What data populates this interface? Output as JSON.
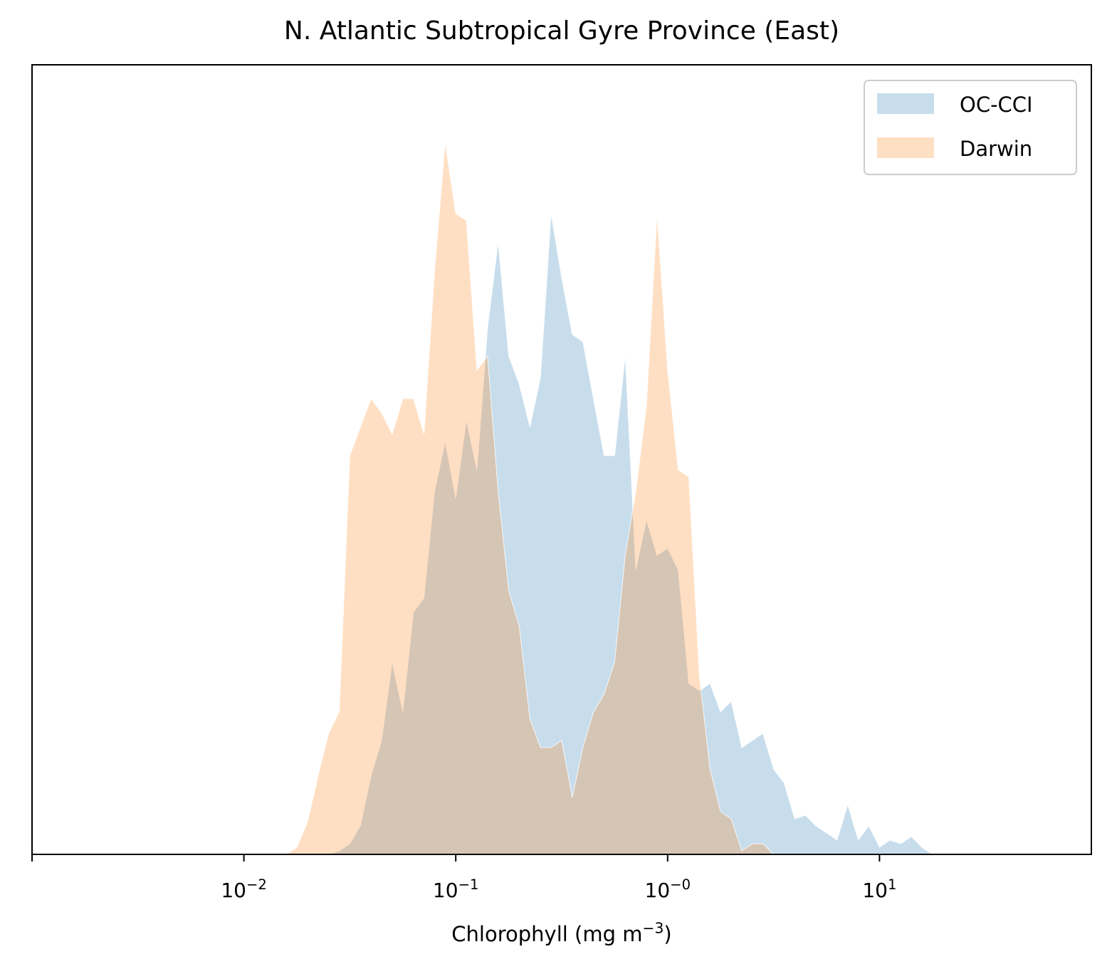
{
  "chart_data": {
    "type": "area",
    "title": "N. Atlantic Subtropical Gyre Province (East)",
    "x_label": "Chlorophyll  (mg m−3)",
    "log_x": true,
    "xlim": [
      0.001,
      100
    ],
    "xticks": [
      {
        "value": 0.001,
        "label": null
      },
      {
        "value": 0.01,
        "label": "10−2"
      },
      {
        "value": 0.1,
        "label": "10−1"
      },
      {
        "value": 1,
        "label": "10−0"
      },
      {
        "value": 10,
        "label": "101"
      }
    ],
    "ylim": [
      0,
      1109
    ],
    "legend": "upper right",
    "x": [
      0.01413,
      0.01585,
      0.01778,
      0.01995,
      0.02239,
      0.02512,
      0.02818,
      0.03162,
      0.03548,
      0.03981,
      0.04467,
      0.05012,
      0.05623,
      0.0631,
      0.07079,
      0.07943,
      0.08913,
      0.1,
      0.1122,
      0.1259,
      0.1413,
      0.1585,
      0.1778,
      0.1995,
      0.2239,
      0.2512,
      0.2818,
      0.3162,
      0.3548,
      0.3981,
      0.4467,
      0.5012,
      0.5623,
      0.631,
      0.7079,
      0.7943,
      0.8913,
      1,
      1.122,
      1.259,
      1.413,
      1.585,
      1.778,
      1.995,
      2.239,
      2.512,
      2.818,
      3.162,
      3.548,
      3.981,
      4.467,
      5.012,
      5.623,
      6.31,
      7.079,
      7.943,
      8.913,
      10,
      11.22,
      12.59,
      14.13,
      15.85,
      17.78
    ],
    "series": [
      {
        "name": "OC-CCI",
        "color": "#1f77b4",
        "values": [
          0,
          0,
          0,
          0,
          0,
          0,
          5,
          15,
          40,
          110,
          160,
          270,
          200,
          340,
          360,
          510,
          580,
          500,
          610,
          540,
          740,
          860,
          700,
          660,
          600,
          670,
          900,
          810,
          730,
          720,
          640,
          560,
          560,
          700,
          400,
          470,
          420,
          430,
          400,
          240,
          230,
          240,
          200,
          215,
          150,
          160,
          170,
          120,
          100,
          50,
          55,
          40,
          30,
          20,
          70,
          20,
          40,
          10,
          20,
          15,
          25,
          10,
          0
        ]
      },
      {
        "name": "Darwin",
        "color": "#ff7f0e",
        "values": [
          0,
          0,
          10,
          45,
          110,
          170,
          200,
          560,
          600,
          640,
          620,
          590,
          640,
          640,
          590,
          820,
          1000,
          900,
          890,
          680,
          700,
          510,
          370,
          320,
          190,
          150,
          150,
          160,
          80,
          150,
          200,
          225,
          270,
          420,
          510,
          630,
          900,
          680,
          540,
          530,
          250,
          120,
          60,
          50,
          5,
          15,
          15,
          0,
          0,
          0,
          0,
          0,
          0,
          0,
          0,
          0,
          0,
          0,
          0,
          0,
          0,
          0,
          0
        ]
      }
    ]
  }
}
